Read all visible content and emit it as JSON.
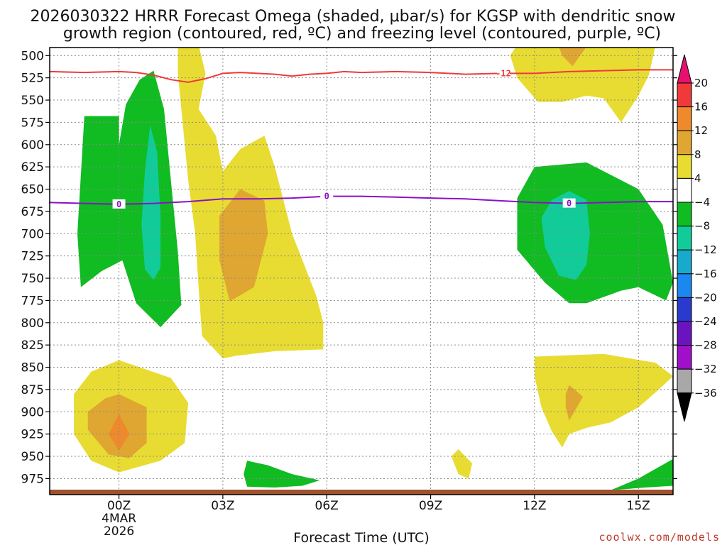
{
  "chart_data": {
    "type": "heatmap",
    "title_line1": "2026030322 HRRR Forecast Omega (shaded, μbar/s) for KGSP with dendritic snow",
    "title_line2": "growth region (contoured, red, ºC) and freezing level (contoured, purple, ºC)",
    "xlabel": "Forecast Time (UTC)",
    "credit": "coolwx.com/models",
    "x_ticks": [
      "00Z",
      "03Z",
      "06Z",
      "09Z",
      "12Z",
      "15Z"
    ],
    "x_hours": [
      0,
      3,
      6,
      9,
      12,
      15
    ],
    "x_range": [
      -2,
      16
    ],
    "date_label_line1": "4MAR",
    "date_label_line2": "2026",
    "y_ticks": [
      500,
      525,
      550,
      575,
      600,
      625,
      650,
      675,
      700,
      725,
      750,
      775,
      800,
      825,
      850,
      875,
      900,
      925,
      950,
      975
    ],
    "y_range": [
      491,
      993
    ],
    "colorbar": {
      "labels": [
        "20",
        "16",
        "12",
        "8",
        "4",
        "−4",
        "−8",
        "−12",
        "−16",
        "−20",
        "−24",
        "−28",
        "−32",
        "−36"
      ],
      "levels": [
        20,
        16,
        12,
        8,
        4,
        -4,
        -8,
        -12,
        -16,
        -20,
        -24,
        -28,
        -32,
        -36
      ],
      "colors": [
        "#e8106e",
        "#f03a3a",
        "#ee8a2c",
        "#e0a632",
        "#e8dc32",
        "#ffffff",
        "#11bb22",
        "#11cc99",
        "#18aacc",
        "#1a88ee",
        "#2a3acc",
        "#6a14c0",
        "#a010c8",
        "#a8a8a8",
        "#000000"
      ]
    },
    "contours": [
      {
        "name": "dendritic snow growth -12C",
        "label": "-12",
        "color": "#ee3a3a",
        "points": [
          [
            -2,
            518
          ],
          [
            -1,
            519
          ],
          [
            0,
            518
          ],
          [
            0.5,
            519
          ],
          [
            1,
            522
          ],
          [
            1.5,
            527
          ],
          [
            2,
            530
          ],
          [
            2.5,
            526
          ],
          [
            3,
            520
          ],
          [
            3.5,
            519
          ],
          [
            4,
            520
          ],
          [
            4.5,
            521
          ],
          [
            5,
            523
          ],
          [
            5.5,
            521
          ],
          [
            6,
            520
          ],
          [
            6.5,
            518
          ],
          [
            7,
            519
          ],
          [
            8,
            518
          ],
          [
            9,
            519
          ],
          [
            10,
            521
          ],
          [
            11,
            520
          ],
          [
            12,
            520
          ],
          [
            13,
            518
          ],
          [
            14,
            517
          ],
          [
            15,
            516
          ],
          [
            16,
            516
          ]
        ]
      },
      {
        "name": "freezing level 0C",
        "label": "0",
        "color": "#8a10c8",
        "points": [
          [
            -2,
            665
          ],
          [
            -1,
            666
          ],
          [
            0,
            667
          ],
          [
            1,
            666
          ],
          [
            2,
            664
          ],
          [
            3,
            661
          ],
          [
            4,
            661
          ],
          [
            5,
            660
          ],
          [
            6,
            658
          ],
          [
            7,
            658
          ],
          [
            8,
            659
          ],
          [
            9,
            660
          ],
          [
            10,
            661
          ],
          [
            11,
            663
          ],
          [
            12,
            665
          ],
          [
            13,
            666
          ],
          [
            14,
            665
          ],
          [
            15,
            664
          ],
          [
            16,
            664
          ]
        ]
      }
    ],
    "omega_regions": [
      {
        "level": -4,
        "color": "#11bb22",
        "points": [
          [
            -1,
            568
          ],
          [
            0,
            568
          ],
          [
            0,
            600
          ],
          [
            0.2,
            555
          ],
          [
            0.6,
            527
          ],
          [
            1,
            517
          ],
          [
            1.3,
            560
          ],
          [
            1.5,
            640
          ],
          [
            1.7,
            720
          ],
          [
            1.8,
            780
          ],
          [
            1.2,
            805
          ],
          [
            0.5,
            778
          ],
          [
            0.1,
            730
          ],
          [
            -0.5,
            742
          ],
          [
            -1.1,
            760
          ],
          [
            -1.2,
            700
          ]
        ]
      },
      {
        "level": -8,
        "color": "#11cc99",
        "points": [
          [
            0.9,
            578
          ],
          [
            1.1,
            608
          ],
          [
            1.2,
            680
          ],
          [
            1.2,
            738
          ],
          [
            1.0,
            752
          ],
          [
            0.75,
            740
          ],
          [
            0.65,
            690
          ],
          [
            0.75,
            630
          ]
        ]
      },
      {
        "level": -4,
        "color": "#11bb22",
        "points": [
          [
            3.7,
            955
          ],
          [
            4.3,
            960
          ],
          [
            5,
            970
          ],
          [
            5.8,
            977
          ],
          [
            5.3,
            983
          ],
          [
            4.5,
            985
          ],
          [
            3.7,
            984
          ],
          [
            3.6,
            970
          ]
        ]
      },
      {
        "level": -4,
        "color": "#11bb22",
        "points": [
          [
            12,
            625
          ],
          [
            13.5,
            620
          ],
          [
            15,
            650
          ],
          [
            15.7,
            690
          ],
          [
            16,
            755
          ],
          [
            15.8,
            775
          ],
          [
            15,
            760
          ],
          [
            14.5,
            764
          ],
          [
            13.5,
            778
          ],
          [
            13,
            778
          ],
          [
            12.3,
            755
          ],
          [
            11.5,
            718
          ],
          [
            11.5,
            660
          ]
        ]
      },
      {
        "level": -8,
        "color": "#11cc99",
        "points": [
          [
            13,
            652
          ],
          [
            13.5,
            662
          ],
          [
            13.6,
            700
          ],
          [
            13.5,
            735
          ],
          [
            13.2,
            752
          ],
          [
            12.7,
            747
          ],
          [
            12.3,
            715
          ],
          [
            12.2,
            682
          ],
          [
            12.5,
            662
          ]
        ]
      },
      {
        "level": -4,
        "color": "#11bb22",
        "points": [
          [
            16,
            953
          ],
          [
            16.2,
            975
          ],
          [
            16,
            983
          ],
          [
            15.2,
            985
          ],
          [
            14.2,
            988
          ],
          [
            15,
            975
          ]
        ]
      },
      {
        "level": 4,
        "color": "#e8dc32",
        "points": [
          [
            1.7,
            488
          ],
          [
            2.3,
            488
          ],
          [
            2.5,
            520
          ],
          [
            2.3,
            560
          ],
          [
            2.8,
            590
          ],
          [
            3.0,
            630
          ],
          [
            3.5,
            605
          ],
          [
            4.2,
            590
          ],
          [
            4.5,
            625
          ],
          [
            5.0,
            700
          ],
          [
            5.7,
            770
          ],
          [
            5.9,
            800
          ],
          [
            5.9,
            830
          ],
          [
            4.5,
            832
          ],
          [
            3.4,
            837
          ],
          [
            3,
            840
          ],
          [
            2.4,
            815
          ],
          [
            2.3,
            760
          ],
          [
            2.2,
            700
          ],
          [
            2.0,
            640
          ],
          [
            1.8,
            560
          ],
          [
            1.7,
            520
          ]
        ]
      },
      {
        "level": 8,
        "color": "#e0a632",
        "points": [
          [
            3.5,
            650
          ],
          [
            4.2,
            663
          ],
          [
            4.3,
            700
          ],
          [
            3.9,
            760
          ],
          [
            3.2,
            776
          ],
          [
            2.9,
            730
          ],
          [
            2.9,
            680
          ]
        ]
      },
      {
        "level": 4,
        "color": "#e8dc32",
        "points": [
          [
            0,
            842
          ],
          [
            1.5,
            862
          ],
          [
            2,
            890
          ],
          [
            1.9,
            935
          ],
          [
            1.2,
            955
          ],
          [
            0,
            968
          ],
          [
            -0.8,
            955
          ],
          [
            -1.3,
            925
          ],
          [
            -1.3,
            880
          ],
          [
            -0.8,
            855
          ]
        ]
      },
      {
        "level": 8,
        "color": "#e0a632",
        "points": [
          [
            0,
            880
          ],
          [
            0.8,
            895
          ],
          [
            0.8,
            935
          ],
          [
            0.3,
            952
          ],
          [
            -0.3,
            948
          ],
          [
            -0.9,
            920
          ],
          [
            -0.9,
            900
          ],
          [
            -0.4,
            885
          ]
        ]
      },
      {
        "level": 12,
        "color": "#ee8a2c",
        "points": [
          [
            0,
            902
          ],
          [
            0.3,
            925
          ],
          [
            0,
            944
          ],
          [
            -0.3,
            925
          ]
        ]
      },
      {
        "level": 4,
        "color": "#e8dc32",
        "points": [
          [
            9.8,
            942
          ],
          [
            10.2,
            958
          ],
          [
            10.1,
            975
          ],
          [
            9.8,
            970
          ],
          [
            9.6,
            950
          ]
        ]
      },
      {
        "level": 4,
        "color": "#e8dc32",
        "points": [
          [
            12,
            838
          ],
          [
            14,
            835
          ],
          [
            15.5,
            845
          ],
          [
            16,
            860
          ],
          [
            15.5,
            878
          ],
          [
            15,
            895
          ],
          [
            14.2,
            912
          ],
          [
            13.5,
            918
          ],
          [
            13,
            925
          ],
          [
            12.8,
            940
          ],
          [
            12.5,
            922
          ],
          [
            12.2,
            895
          ],
          [
            12,
            860
          ]
        ]
      },
      {
        "level": 8,
        "color": "#e0a632",
        "points": [
          [
            13,
            870
          ],
          [
            13.4,
            883
          ],
          [
            13,
            910
          ],
          [
            12.9,
            895
          ],
          [
            12.9,
            880
          ]
        ]
      },
      {
        "level": 4,
        "color": "#e8dc32",
        "points": [
          [
            11.5,
            488
          ],
          [
            15.5,
            488
          ],
          [
            15.3,
            522
          ],
          [
            15,
            545
          ],
          [
            14.5,
            575
          ],
          [
            14,
            548
          ],
          [
            13.5,
            545
          ],
          [
            12.8,
            552
          ],
          [
            12.1,
            552
          ],
          [
            11.5,
            525
          ],
          [
            11.3,
            500
          ]
        ]
      },
      {
        "level": 8,
        "color": "#e0a632",
        "points": [
          [
            12.7,
            490
          ],
          [
            13.5,
            490
          ],
          [
            13.1,
            512
          ],
          [
            12.8,
            500
          ]
        ]
      }
    ],
    "ground_color": "#a0522d"
  }
}
